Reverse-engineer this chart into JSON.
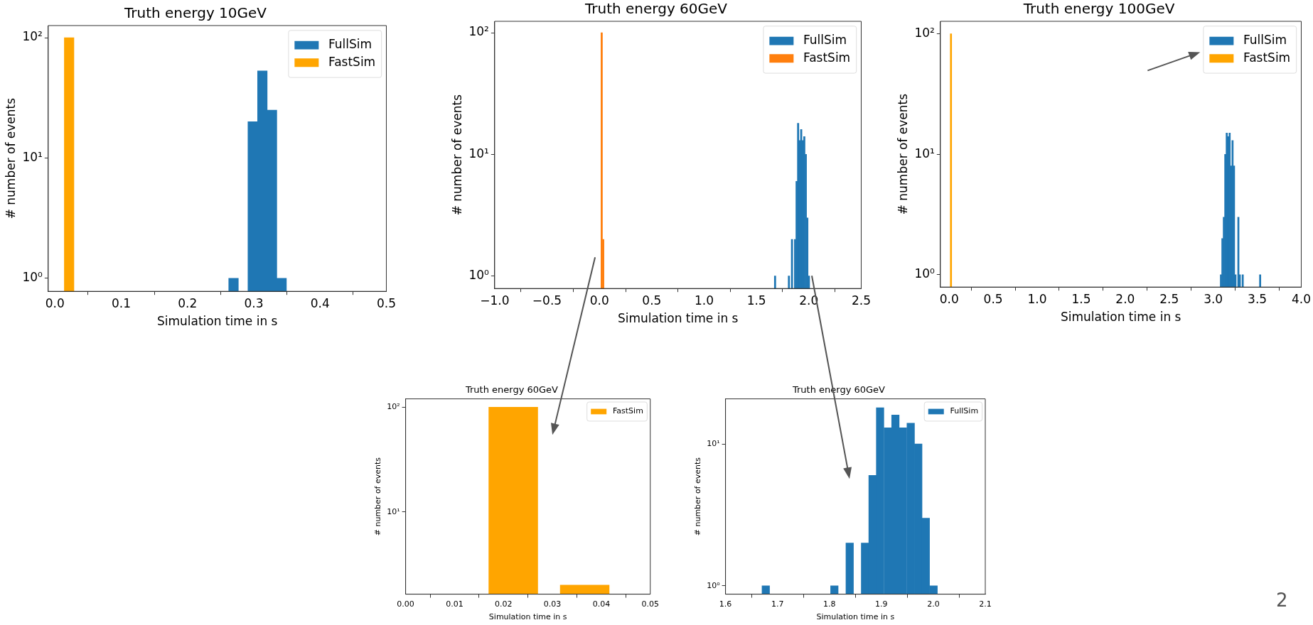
{
  "chart_data": [
    {
      "type": "histogram",
      "title": "Truth energy 10GeV",
      "xlabel": "Simulation time in s",
      "ylabel": "# number of events",
      "log": true,
      "grid": false,
      "legend": "top right",
      "xlim": [
        -0.01,
        0.5
      ],
      "xticks": [
        {
          "value": 0,
          "label": "0.0"
        },
        {
          "value": 0.1,
          "label": "0.1"
        },
        {
          "value": 0.2,
          "label": "0.2"
        },
        {
          "value": 0.3,
          "label": "0.3"
        },
        {
          "value": 0.4,
          "label": "0.4"
        },
        {
          "value": 0.5,
          "label": "0.5"
        }
      ],
      "ylim": [
        0.78,
        126
      ],
      "yticks": [
        {
          "value": 1,
          "label": "10⁰"
        },
        {
          "value": 10,
          "label": "10¹"
        },
        {
          "value": 100,
          "label": "10²"
        }
      ],
      "bins": [
        0.014,
        0.029,
        0.262,
        0.277,
        0.291,
        0.306,
        0.32,
        0.335,
        0.349
      ],
      "series": [
        {
          "name": "FullSim",
          "color": "#1f77b4",
          "values": [
            null,
            null,
            1,
            null,
            20,
            53,
            25,
            1
          ]
        },
        {
          "name": "FastSim",
          "color": "#ffa500",
          "values": [
            100,
            null,
            null,
            null,
            null,
            null,
            null,
            null
          ]
        }
      ]
    },
    {
      "type": "histogram",
      "title": "Truth energy 60GeV",
      "xlabel": "Simulation time in s",
      "ylabel": "# number of events",
      "log": true,
      "grid": false,
      "legend": "top right",
      "xlim": [
        -1,
        2.5
      ],
      "xticks": [
        {
          "value": -1,
          "label": "−1.0"
        },
        {
          "value": -0.5,
          "label": "−0.5"
        },
        {
          "value": 0,
          "label": "0.0"
        },
        {
          "value": 0.5,
          "label": "0.5"
        },
        {
          "value": 1,
          "label": "1.0"
        },
        {
          "value": 1.5,
          "label": "1.5"
        },
        {
          "value": 2,
          "label": "2.0"
        },
        {
          "value": 2.5,
          "label": "2.5"
        }
      ],
      "ylim": [
        0.79,
        124
      ],
      "yticks": [
        {
          "value": 1,
          "label": "10⁰"
        },
        {
          "value": 10,
          "label": "10¹"
        },
        {
          "value": 100,
          "label": "10²"
        }
      ],
      "bins": [
        0.0147,
        0.0293,
        0.0439,
        1.67,
        1.685,
        1.802,
        1.817,
        1.832,
        1.846,
        1.861,
        1.876,
        1.89,
        1.905,
        1.92,
        1.934,
        1.949,
        1.964,
        1.978,
        1.993,
        2.008
      ],
      "series": [
        {
          "name": "FullSim",
          "color": "#1f77b4",
          "values": [
            null,
            null,
            null,
            1,
            null,
            1,
            null,
            2,
            null,
            2,
            6,
            18,
            13,
            16,
            13,
            14,
            10,
            3,
            1
          ]
        },
        {
          "name": "FastSim",
          "color": "#ff7f0e",
          "values": [
            100,
            2,
            null,
            null,
            null,
            null,
            null,
            null,
            null,
            null,
            null,
            null,
            null,
            null,
            null,
            null,
            null,
            null,
            null
          ]
        }
      ]
    },
    {
      "type": "histogram",
      "title": "Truth energy 100GeV",
      "xlabel": "Simulation time in s",
      "ylabel": "# number of events",
      "log": true,
      "grid": false,
      "legend": "top right",
      "xlim": [
        -0.1,
        4
      ],
      "xticks": [
        {
          "value": 0,
          "label": "0.0"
        },
        {
          "value": 0.5,
          "label": "0.5"
        },
        {
          "value": 1,
          "label": "1.0"
        },
        {
          "value": 1.5,
          "label": "1.5"
        },
        {
          "value": 2,
          "label": "2.0"
        },
        {
          "value": 2.5,
          "label": "2.5"
        },
        {
          "value": 3,
          "label": "3.0"
        },
        {
          "value": 3.5,
          "label": "3.5"
        },
        {
          "value": 4,
          "label": "4.0"
        }
      ],
      "ylim": [
        0.79,
        127
      ],
      "yticks": [
        {
          "value": 1,
          "label": "10⁰"
        },
        {
          "value": 10,
          "label": "10¹"
        },
        {
          "value": 100,
          "label": "10²"
        }
      ],
      "bins": [
        0.012,
        0.0285,
        3.079,
        3.096,
        3.112,
        3.129,
        3.145,
        3.162,
        3.178,
        3.195,
        3.211,
        3.228,
        3.244,
        3.261,
        3.277,
        3.294,
        3.31,
        3.327,
        3.343,
        3.525,
        3.541
      ],
      "series": [
        {
          "name": "FullSim",
          "color": "#1f77b4",
          "values": [
            null,
            null,
            1,
            2,
            3,
            10,
            15,
            14,
            15,
            8,
            13,
            8,
            1,
            null,
            3,
            1,
            null,
            1,
            null,
            1
          ]
        },
        {
          "name": "FastSim",
          "color": "#ffa500",
          "values": [
            100,
            null,
            null,
            null,
            null,
            null,
            null,
            null,
            null,
            null,
            null,
            null,
            null,
            null,
            null,
            null,
            null,
            null,
            null,
            null
          ]
        }
      ]
    },
    {
      "type": "histogram",
      "title": "Truth energy 60GeV",
      "xlabel": "Simulation time in s",
      "ylabel": "# number of events",
      "log": true,
      "grid": false,
      "legend": "top right",
      "xlim": [
        0,
        0.05
      ],
      "xticks": [
        {
          "value": 0,
          "label": "0.00"
        },
        {
          "value": 0.01,
          "label": "0.01"
        },
        {
          "value": 0.02,
          "label": "0.02"
        },
        {
          "value": 0.03,
          "label": "0.03"
        },
        {
          "value": 0.04,
          "label": "0.04"
        },
        {
          "value": 0.05,
          "label": "0.05"
        }
      ],
      "ylim": [
        1.64,
        120
      ],
      "yticks": [
        {
          "value": 10,
          "label": "10¹"
        },
        {
          "value": 100,
          "label": "10²"
        }
      ],
      "bins": [
        0.0147,
        0.0293,
        0.0439
      ],
      "series": [
        {
          "name": "FastSim",
          "color": "#ffa500",
          "values": [
            100,
            2
          ]
        }
      ]
    },
    {
      "type": "histogram",
      "title": "Truth energy 60GeV",
      "xlabel": "Simulation time in s",
      "ylabel": "# number of events",
      "log": true,
      "grid": false,
      "legend": "top right",
      "xlim": [
        1.6,
        2.1
      ],
      "xticks": [
        {
          "value": 1.6,
          "label": "1.6"
        },
        {
          "value": 1.7,
          "label": "1.7"
        },
        {
          "value": 1.8,
          "label": "1.8"
        },
        {
          "value": 1.9,
          "label": "1.9"
        },
        {
          "value": 2.0,
          "label": "2.0"
        },
        {
          "value": 2.1,
          "label": "2.1"
        }
      ],
      "ylim": [
        0.873,
        20.8
      ],
      "yticks": [
        {
          "value": 1,
          "label": "10⁰"
        },
        {
          "value": 10,
          "label": "10¹"
        }
      ],
      "annotations": [
        "2"
      ],
      "bins": [
        1.67,
        1.685,
        1.802,
        1.817,
        1.832,
        1.846,
        1.861,
        1.876,
        1.89,
        1.905,
        1.92,
        1.934,
        1.949,
        1.964,
        1.978,
        1.993,
        2.008
      ],
      "series": [
        {
          "name": "FullSim",
          "color": "#1f77b4",
          "values": [
            1,
            null,
            1,
            null,
            2,
            null,
            2,
            6,
            18,
            13,
            16,
            13,
            14,
            10,
            3,
            1
          ]
        }
      ]
    }
  ]
}
